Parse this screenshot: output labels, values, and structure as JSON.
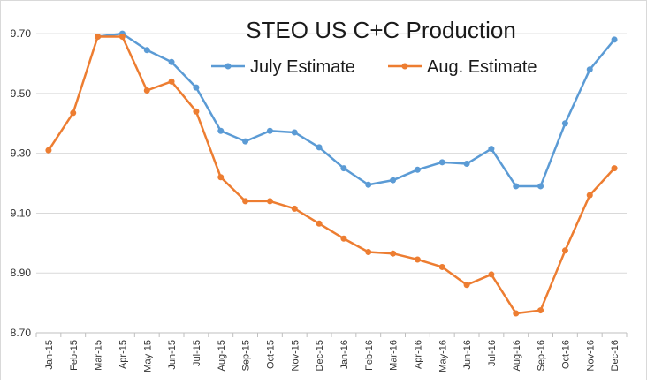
{
  "chart_data": {
    "type": "line",
    "title": "STEO US C+C Production",
    "xlabel": "",
    "ylabel": "",
    "categories": [
      "Jan-15",
      "Feb-15",
      "Mar-15",
      "Apr-15",
      "May-15",
      "Jun-15",
      "Jul-15",
      "Aug-15",
      "Sep-15",
      "Oct-15",
      "Nov-15",
      "Dec-15",
      "Jan-16",
      "Feb-16",
      "Mar-16",
      "Apr-16",
      "May-16",
      "Jun-16",
      "Jul-16",
      "Aug-16",
      "Sep-16",
      "Oct-16",
      "Nov-16",
      "Dec-16"
    ],
    "ylim": [
      8.7,
      9.78
    ],
    "yticks": [
      "8.70",
      "8.90",
      "9.10",
      "9.30",
      "9.50",
      "9.70"
    ],
    "grid": true,
    "legend_position": "top",
    "series": [
      {
        "name": "July Estimate",
        "color": "#5b9bd5",
        "values": [
          null,
          null,
          9.69,
          9.7,
          9.645,
          9.605,
          9.52,
          9.375,
          9.34,
          9.375,
          9.37,
          9.32,
          9.25,
          9.195,
          9.21,
          9.245,
          9.27,
          9.265,
          9.315,
          9.19,
          9.19,
          9.4,
          9.58,
          9.68
        ]
      },
      {
        "name": "Aug. Estimate",
        "color": "#ed7d31",
        "values": [
          9.31,
          9.435,
          9.69,
          9.69,
          9.51,
          9.54,
          9.44,
          9.22,
          9.14,
          9.14,
          9.115,
          9.065,
          9.015,
          8.97,
          8.965,
          8.945,
          8.92,
          8.86,
          8.895,
          8.765,
          8.775,
          8.975,
          9.16,
          9.25
        ]
      }
    ]
  }
}
